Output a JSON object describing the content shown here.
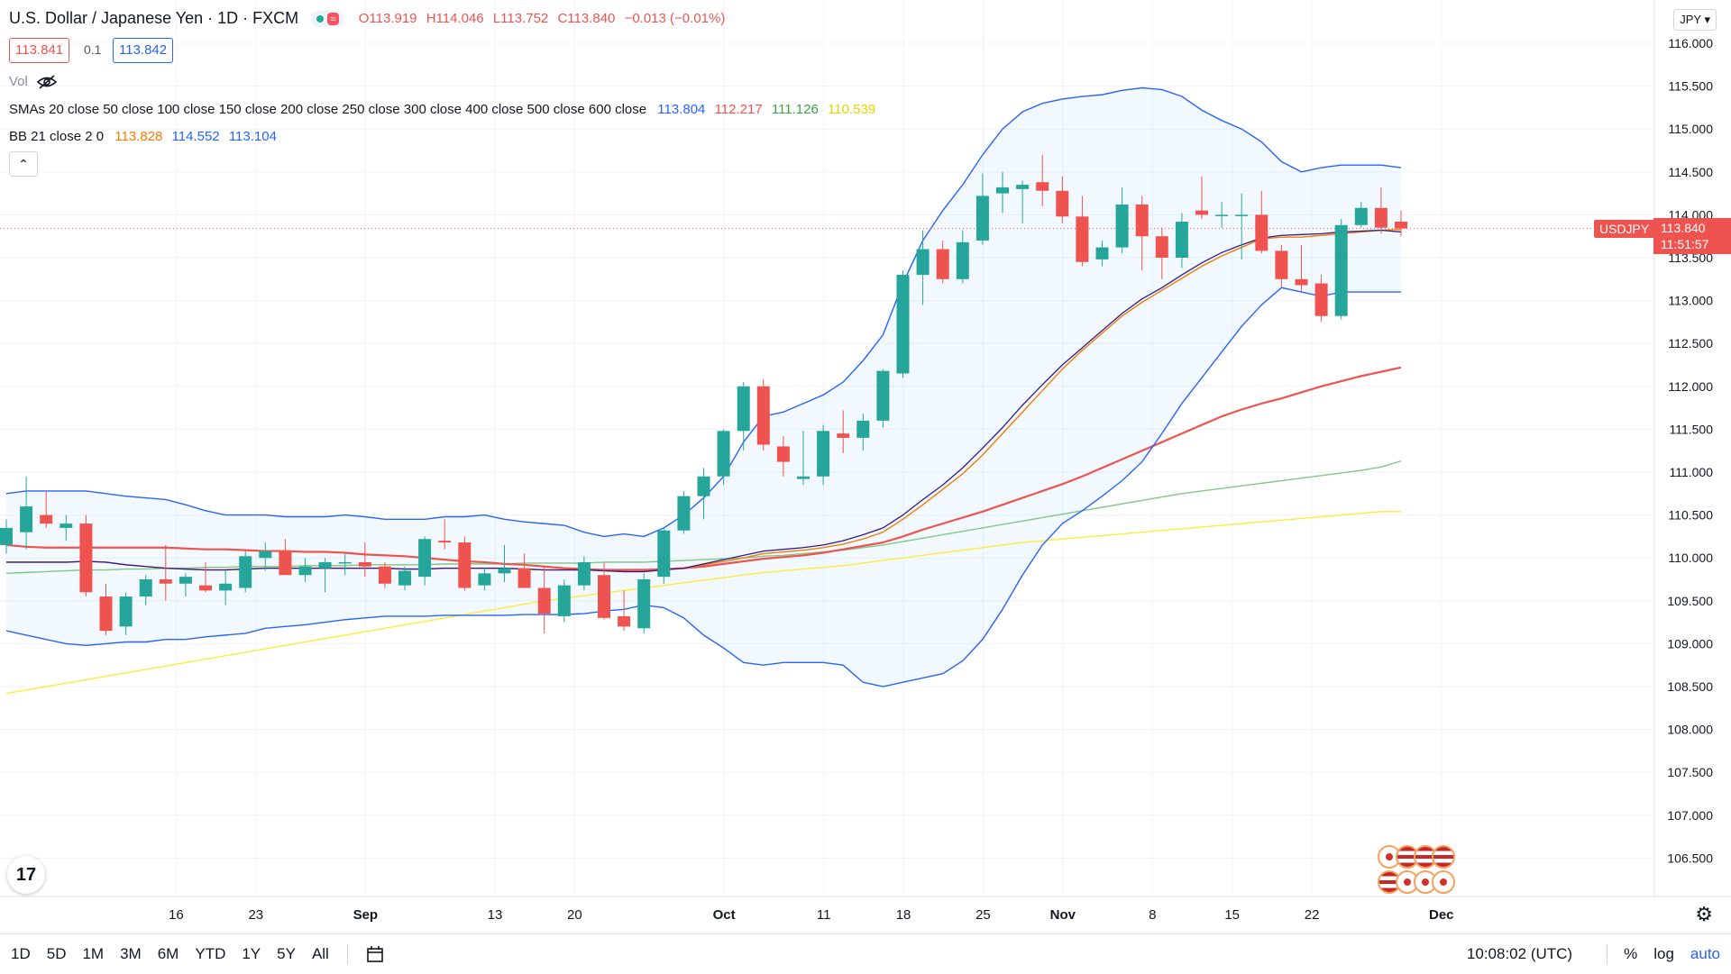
{
  "header": {
    "symbol_title": "U.S. Dollar / Japanese Yen · 1D · FXCM",
    "ohlc": {
      "open": "O113.919",
      "high": "H114.046",
      "low": "L113.752",
      "close": "C113.840",
      "change": "−0.013 (−0.01%)"
    },
    "sell_price": "113.841",
    "spread": "0.1",
    "buy_price": "113.842"
  },
  "indicators": {
    "vol_label": "Vol",
    "sma_label": "SMAs 20 close 50 close 100 close 150 close 200 close 250 close 300 close 400 close 500 close 600 close",
    "sma_values": [
      "113.804",
      "112.217",
      "111.126",
      "110.539"
    ],
    "bb_label": "BB 21 close 2 0",
    "bb_values": [
      "113.828",
      "114.552",
      "113.104"
    ]
  },
  "currency_button": "JPY",
  "price_tag": {
    "symbol": "USDJPY",
    "price": "113.840",
    "countdown": "11:51:57"
  },
  "bottom_bar": {
    "ranges": [
      "1D",
      "5D",
      "1M",
      "3M",
      "6M",
      "YTD",
      "1Y",
      "5Y",
      "All"
    ],
    "time": "10:08:02 (UTC)",
    "percent": "%",
    "log": "log",
    "auto": "auto"
  },
  "logo": "17",
  "colors": {
    "up": "#26a69a",
    "down": "#ef5350",
    "bb_basis": "#f57c00",
    "bb_band": "#2962ff",
    "sma20": "#311b92",
    "sma50": "#ef5350",
    "sma100": "#81c784",
    "sma150": "#ffeb3b",
    "price_line": "#ef5350"
  },
  "chart_data": {
    "type": "candlestick",
    "y_axis": {
      "ticks": [
        "116.000",
        "115.500",
        "115.000",
        "114.500",
        "114.000",
        "113.500",
        "113.000",
        "112.500",
        "112.000",
        "111.500",
        "111.000",
        "110.500",
        "110.000",
        "109.500",
        "109.000",
        "108.500",
        "108.000",
        "107.500",
        "107.000",
        "106.500"
      ],
      "range": [
        106.2,
        116.2
      ]
    },
    "x_axis": {
      "ticks": [
        "16",
        "23",
        "Sep",
        "13",
        "20",
        "Oct",
        "11",
        "18",
        "25",
        "Nov",
        "8",
        "15",
        "22",
        "Dec"
      ]
    },
    "candles": [
      {
        "o": 110.15,
        "h": 110.45,
        "l": 110.05,
        "c": 110.35
      },
      {
        "o": 110.3,
        "h": 110.95,
        "l": 110.1,
        "c": 110.6
      },
      {
        "o": 110.5,
        "h": 110.78,
        "l": 110.35,
        "c": 110.4
      },
      {
        "o": 110.35,
        "h": 110.5,
        "l": 110.2,
        "c": 110.4
      },
      {
        "o": 110.4,
        "h": 110.5,
        "l": 109.55,
        "c": 109.6
      },
      {
        "o": 109.55,
        "h": 109.7,
        "l": 109.1,
        "c": 109.15
      },
      {
        "o": 109.2,
        "h": 109.6,
        "l": 109.1,
        "c": 109.55
      },
      {
        "o": 109.55,
        "h": 109.8,
        "l": 109.45,
        "c": 109.75
      },
      {
        "o": 109.75,
        "h": 110.15,
        "l": 109.5,
        "c": 109.7
      },
      {
        "o": 109.7,
        "h": 109.82,
        "l": 109.55,
        "c": 109.78
      },
      {
        "o": 109.68,
        "h": 109.95,
        "l": 109.6,
        "c": 109.62
      },
      {
        "o": 109.62,
        "h": 109.85,
        "l": 109.45,
        "c": 109.7
      },
      {
        "o": 109.65,
        "h": 110.08,
        "l": 109.6,
        "c": 110.02
      },
      {
        "o": 110.0,
        "h": 110.18,
        "l": 109.85,
        "c": 110.08
      },
      {
        "o": 110.08,
        "h": 110.22,
        "l": 109.85,
        "c": 109.8
      },
      {
        "o": 109.8,
        "h": 110.0,
        "l": 109.72,
        "c": 109.9
      },
      {
        "o": 109.88,
        "h": 110.0,
        "l": 109.6,
        "c": 109.95
      },
      {
        "o": 109.95,
        "h": 110.05,
        "l": 109.8,
        "c": 109.95
      },
      {
        "o": 109.95,
        "h": 110.18,
        "l": 109.78,
        "c": 109.9
      },
      {
        "o": 109.9,
        "h": 109.95,
        "l": 109.65,
        "c": 109.7
      },
      {
        "o": 109.68,
        "h": 109.9,
        "l": 109.62,
        "c": 109.85
      },
      {
        "o": 109.78,
        "h": 110.25,
        "l": 109.68,
        "c": 110.22
      },
      {
        "o": 110.2,
        "h": 110.45,
        "l": 110.1,
        "c": 110.18
      },
      {
        "o": 110.18,
        "h": 110.25,
        "l": 109.62,
        "c": 109.65
      },
      {
        "o": 109.68,
        "h": 109.88,
        "l": 109.62,
        "c": 109.82
      },
      {
        "o": 109.82,
        "h": 110.15,
        "l": 109.72,
        "c": 109.88
      },
      {
        "o": 109.88,
        "h": 110.05,
        "l": 109.7,
        "c": 109.65
      },
      {
        "o": 109.65,
        "h": 109.9,
        "l": 109.12,
        "c": 109.35
      },
      {
        "o": 109.32,
        "h": 109.75,
        "l": 109.25,
        "c": 109.68
      },
      {
        "o": 109.68,
        "h": 110.02,
        "l": 109.62,
        "c": 109.95
      },
      {
        "o": 109.8,
        "h": 109.95,
        "l": 109.28,
        "c": 109.3
      },
      {
        "o": 109.32,
        "h": 109.62,
        "l": 109.15,
        "c": 109.2
      },
      {
        "o": 109.18,
        "h": 109.82,
        "l": 109.12,
        "c": 109.75
      },
      {
        "o": 109.78,
        "h": 110.35,
        "l": 109.7,
        "c": 110.32
      },
      {
        "o": 110.32,
        "h": 110.78,
        "l": 110.28,
        "c": 110.72
      },
      {
        "o": 110.72,
        "h": 111.05,
        "l": 110.45,
        "c": 110.95
      },
      {
        "o": 110.95,
        "h": 111.5,
        "l": 110.85,
        "c": 111.48
      },
      {
        "o": 111.48,
        "h": 112.05,
        "l": 111.25,
        "c": 112.0
      },
      {
        "o": 112.0,
        "h": 112.08,
        "l": 111.25,
        "c": 111.32
      },
      {
        "o": 111.3,
        "h": 111.42,
        "l": 110.95,
        "c": 111.12
      },
      {
        "o": 110.92,
        "h": 111.48,
        "l": 110.85,
        "c": 110.95
      },
      {
        "o": 110.95,
        "h": 111.55,
        "l": 110.85,
        "c": 111.48
      },
      {
        "o": 111.45,
        "h": 111.72,
        "l": 111.22,
        "c": 111.4
      },
      {
        "o": 111.4,
        "h": 111.68,
        "l": 111.25,
        "c": 111.6
      },
      {
        "o": 111.6,
        "h": 112.2,
        "l": 111.52,
        "c": 112.18
      },
      {
        "o": 112.15,
        "h": 113.35,
        "l": 112.1,
        "c": 113.3
      },
      {
        "o": 113.3,
        "h": 113.82,
        "l": 112.95,
        "c": 113.6
      },
      {
        "o": 113.6,
        "h": 113.7,
        "l": 113.2,
        "c": 113.25
      },
      {
        "o": 113.25,
        "h": 113.82,
        "l": 113.2,
        "c": 113.68
      },
      {
        "o": 113.7,
        "h": 114.48,
        "l": 113.65,
        "c": 114.22
      },
      {
        "o": 114.25,
        "h": 114.5,
        "l": 114.02,
        "c": 114.32
      },
      {
        "o": 114.3,
        "h": 114.4,
        "l": 113.9,
        "c": 114.35
      },
      {
        "o": 114.38,
        "h": 114.7,
        "l": 114.1,
        "c": 114.28
      },
      {
        "o": 114.28,
        "h": 114.45,
        "l": 113.9,
        "c": 113.98
      },
      {
        "o": 113.98,
        "h": 114.22,
        "l": 113.4,
        "c": 113.45
      },
      {
        "o": 113.48,
        "h": 113.7,
        "l": 113.4,
        "c": 113.62
      },
      {
        "o": 113.62,
        "h": 114.32,
        "l": 113.55,
        "c": 114.12
      },
      {
        "o": 114.12,
        "h": 114.22,
        "l": 113.35,
        "c": 113.75
      },
      {
        "o": 113.75,
        "h": 113.85,
        "l": 113.25,
        "c": 113.5
      },
      {
        "o": 113.5,
        "h": 114.02,
        "l": 113.38,
        "c": 113.92
      },
      {
        "o": 114.05,
        "h": 114.45,
        "l": 113.95,
        "c": 114.0
      },
      {
        "o": 114.0,
        "h": 114.15,
        "l": 113.85,
        "c": 114.0
      },
      {
        "o": 114.0,
        "h": 114.25,
        "l": 113.48,
        "c": 114.0
      },
      {
        "o": 114.0,
        "h": 114.28,
        "l": 113.55,
        "c": 113.58
      },
      {
        "o": 113.58,
        "h": 113.65,
        "l": 113.15,
        "c": 113.25
      },
      {
        "o": 113.25,
        "h": 113.65,
        "l": 113.1,
        "c": 113.18
      },
      {
        "o": 113.2,
        "h": 113.3,
        "l": 112.75,
        "c": 112.82
      },
      {
        "o": 112.82,
        "h": 113.95,
        "l": 112.78,
        "c": 113.88
      },
      {
        "o": 113.88,
        "h": 114.15,
        "l": 113.85,
        "c": 114.08
      },
      {
        "o": 114.08,
        "h": 114.32,
        "l": 113.78,
        "c": 113.85
      },
      {
        "o": 113.92,
        "h": 114.05,
        "l": 113.75,
        "c": 113.84
      }
    ],
    "lines": {
      "bb_upper": [
        110.75,
        110.78,
        110.78,
        110.78,
        110.78,
        110.75,
        110.72,
        110.7,
        110.68,
        110.62,
        110.55,
        110.5,
        110.5,
        110.5,
        110.48,
        110.48,
        110.48,
        110.5,
        110.48,
        110.45,
        110.45,
        110.45,
        110.48,
        110.48,
        110.5,
        110.45,
        110.42,
        110.4,
        110.38,
        110.3,
        110.25,
        110.28,
        110.25,
        110.35,
        110.5,
        110.7,
        110.95,
        111.35,
        111.65,
        111.7,
        111.8,
        111.9,
        112.05,
        112.3,
        112.6,
        113.2,
        113.7,
        114.05,
        114.35,
        114.7,
        115.0,
        115.2,
        115.3,
        115.35,
        115.38,
        115.4,
        115.45,
        115.48,
        115.46,
        115.38,
        115.22,
        115.1,
        115.0,
        114.85,
        114.62,
        114.5,
        114.55,
        114.58,
        114.58,
        114.58,
        114.55
      ],
      "bb_basis": [
        109.95,
        109.95,
        109.95,
        109.95,
        109.96,
        109.95,
        109.92,
        109.9,
        109.88,
        109.87,
        109.86,
        109.86,
        109.87,
        109.88,
        109.88,
        109.88,
        109.88,
        109.88,
        109.88,
        109.88,
        109.87,
        109.87,
        109.88,
        109.88,
        109.88,
        109.88,
        109.87,
        109.86,
        109.86,
        109.86,
        109.85,
        109.84,
        109.84,
        109.86,
        109.88,
        109.92,
        109.96,
        110.0,
        110.05,
        110.07,
        110.09,
        110.12,
        110.16,
        110.22,
        110.3,
        110.45,
        110.62,
        110.8,
        110.98,
        111.2,
        111.45,
        111.7,
        111.95,
        112.2,
        112.42,
        112.62,
        112.82,
        112.98,
        113.12,
        113.26,
        113.4,
        113.52,
        113.62,
        113.72,
        113.74,
        113.74,
        113.76,
        113.78,
        113.8,
        113.82,
        113.83
      ],
      "bb_lower": [
        109.15,
        109.1,
        109.05,
        109.0,
        108.98,
        109.0,
        109.02,
        109.02,
        109.05,
        109.05,
        109.08,
        109.1,
        109.12,
        109.18,
        109.2,
        109.22,
        109.25,
        109.28,
        109.3,
        109.32,
        109.32,
        109.32,
        109.33,
        109.33,
        109.33,
        109.33,
        109.34,
        109.34,
        109.34,
        109.35,
        109.38,
        109.4,
        109.45,
        109.42,
        109.3,
        109.1,
        108.95,
        108.78,
        108.75,
        108.78,
        108.78,
        108.78,
        108.75,
        108.55,
        108.5,
        108.55,
        108.6,
        108.65,
        108.8,
        109.05,
        109.4,
        109.8,
        110.15,
        110.4,
        110.55,
        110.72,
        110.9,
        111.12,
        111.45,
        111.8,
        112.1,
        112.4,
        112.7,
        112.95,
        113.15,
        113.1,
        113.05,
        113.1,
        113.1,
        113.1,
        113.1
      ],
      "sma20": [
        109.95,
        109.95,
        109.95,
        109.95,
        109.96,
        109.95,
        109.92,
        109.9,
        109.88,
        109.87,
        109.86,
        109.86,
        109.87,
        109.88,
        109.88,
        109.88,
        109.88,
        109.88,
        109.88,
        109.88,
        109.87,
        109.87,
        109.88,
        109.88,
        109.88,
        109.88,
        109.87,
        109.86,
        109.86,
        109.86,
        109.85,
        109.84,
        109.84,
        109.86,
        109.88,
        109.93,
        109.98,
        110.03,
        110.08,
        110.1,
        110.12,
        110.15,
        110.2,
        110.27,
        110.35,
        110.5,
        110.68,
        110.85,
        111.05,
        111.28,
        111.52,
        111.78,
        112.02,
        112.25,
        112.45,
        112.65,
        112.85,
        113.02,
        113.15,
        113.3,
        113.44,
        113.56,
        113.65,
        113.73,
        113.76,
        113.77,
        113.78,
        113.8,
        113.81,
        113.82,
        113.8
      ],
      "sma50": [
        110.15,
        110.13,
        110.12,
        110.12,
        110.12,
        110.12,
        110.12,
        110.12,
        110.12,
        110.11,
        110.1,
        110.1,
        110.09,
        110.08,
        110.08,
        110.07,
        110.07,
        110.06,
        110.04,
        110.03,
        110.02,
        110.0,
        109.98,
        109.96,
        109.95,
        109.93,
        109.92,
        109.9,
        109.88,
        109.87,
        109.86,
        109.86,
        109.86,
        109.87,
        109.88,
        109.9,
        109.93,
        109.96,
        109.99,
        110.01,
        110.03,
        110.06,
        110.1,
        110.14,
        110.18,
        110.25,
        110.33,
        110.4,
        110.47,
        110.54,
        110.62,
        110.7,
        110.78,
        110.86,
        110.95,
        111.05,
        111.15,
        111.25,
        111.35,
        111.45,
        111.55,
        111.65,
        111.73,
        111.8,
        111.86,
        111.93,
        112.0,
        112.06,
        112.12,
        112.17,
        112.22
      ],
      "sma100": [
        109.82,
        109.83,
        109.84,
        109.85,
        109.86,
        109.86,
        109.87,
        109.87,
        109.88,
        109.88,
        109.89,
        109.89,
        109.9,
        109.9,
        109.9,
        109.91,
        109.91,
        109.91,
        109.92,
        109.92,
        109.92,
        109.92,
        109.93,
        109.93,
        109.93,
        109.93,
        109.94,
        109.94,
        109.94,
        109.94,
        109.95,
        109.95,
        109.95,
        109.96,
        109.97,
        109.98,
        109.99,
        110.0,
        110.02,
        110.03,
        110.05,
        110.07,
        110.09,
        110.12,
        110.15,
        110.19,
        110.23,
        110.27,
        110.31,
        110.35,
        110.39,
        110.43,
        110.47,
        110.51,
        110.55,
        110.59,
        110.63,
        110.67,
        110.71,
        110.75,
        110.78,
        110.81,
        110.84,
        110.87,
        110.9,
        110.93,
        110.96,
        110.99,
        111.02,
        111.06,
        111.13
      ],
      "sma150": [
        108.42,
        108.46,
        108.5,
        108.54,
        108.58,
        108.62,
        108.66,
        108.7,
        108.74,
        108.78,
        108.82,
        108.86,
        108.9,
        108.94,
        108.98,
        109.02,
        109.06,
        109.1,
        109.14,
        109.18,
        109.22,
        109.26,
        109.3,
        109.34,
        109.38,
        109.42,
        109.46,
        109.5,
        109.53,
        109.56,
        109.59,
        109.62,
        109.65,
        109.68,
        109.71,
        109.74,
        109.77,
        109.8,
        109.83,
        109.85,
        109.87,
        109.89,
        109.91,
        109.94,
        109.97,
        110.0,
        110.03,
        110.06,
        110.09,
        110.12,
        110.15,
        110.18,
        110.2,
        110.22,
        110.24,
        110.26,
        110.28,
        110.3,
        110.32,
        110.34,
        110.36,
        110.38,
        110.4,
        110.42,
        110.44,
        110.46,
        110.48,
        110.5,
        110.52,
        110.54,
        110.54
      ]
    },
    "current_price": 113.84
  }
}
